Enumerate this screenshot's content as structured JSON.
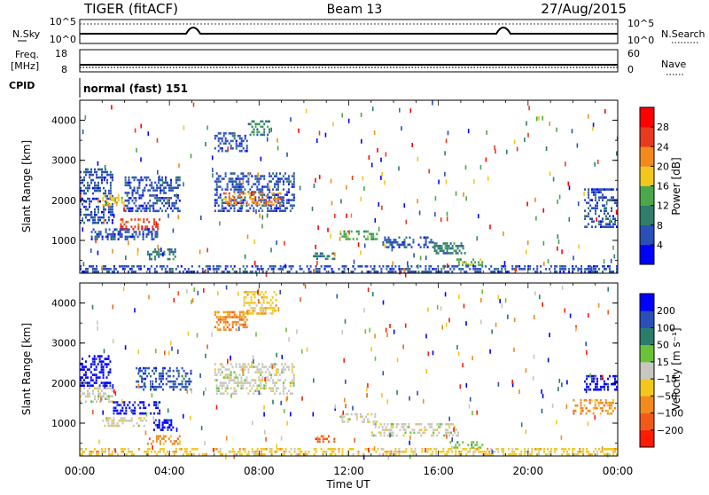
{
  "header": {
    "radar": "TIGER (fitACF)",
    "beam": "Beam 13",
    "date": "27/Aug/2015"
  },
  "aux": {
    "nsky_label": "N.Sky",
    "nsearch_label": "N.Search",
    "nsky_ticks": [
      "10^5",
      "10^0"
    ],
    "nsearch_ticks": [
      "10^5",
      "10^0"
    ],
    "freq_label": "Freq.",
    "freq_unit": "[MHz]",
    "freq_ticks": [
      "18",
      "8"
    ],
    "nave_label": "Nave",
    "nave_ticks": [
      "60",
      "0"
    ],
    "cpid_label": "CPID",
    "cpid_value": "normal (fast) 151"
  },
  "chart_data": [
    {
      "type": "heatmap",
      "name": "power",
      "ylabel": "Slant Range [km]",
      "ylim": [
        180,
        4500
      ],
      "yticks": [
        "4000",
        "3000",
        "2000",
        "1000"
      ],
      "colorbar_label": "Power [dB]",
      "colorbar_ticks": [
        "28",
        "24",
        "20",
        "16",
        "12",
        "8",
        "4"
      ],
      "colors": [
        "#0000ff",
        "#2a50b8",
        "#2f7d6a",
        "#4aa84a",
        "#f2c81e",
        "#f28a1e",
        "#e83a1e",
        "#ff0000"
      ],
      "xlim_hours": [
        0,
        24
      ],
      "x_ticks": [
        "00:00",
        "04:00",
        "08:00",
        "12:00",
        "16:00",
        "20:00",
        "00:00"
      ],
      "patches": [
        {
          "t0": 0.0,
          "t1": 1.5,
          "r0": 1400,
          "r1": 2800,
          "lvl": 1
        },
        {
          "t0": 1.0,
          "t1": 2.0,
          "r0": 1850,
          "r1": 2150,
          "lvl": 4
        },
        {
          "t0": 1.8,
          "t1": 3.6,
          "r0": 1250,
          "r1": 1550,
          "lvl": 6
        },
        {
          "t0": 0.5,
          "t1": 3.5,
          "r0": 1000,
          "r1": 1300,
          "lvl": 1
        },
        {
          "t0": 2.0,
          "t1": 4.5,
          "r0": 1700,
          "r1": 2600,
          "lvl": 1
        },
        {
          "t0": 3.0,
          "t1": 4.3,
          "r0": 500,
          "r1": 800,
          "lvl": 2
        },
        {
          "t0": 6.0,
          "t1": 9.6,
          "r0": 1700,
          "r1": 2700,
          "lvl": 1
        },
        {
          "t0": 6.4,
          "t1": 9.0,
          "r0": 1850,
          "r1": 2200,
          "lvl": 5
        },
        {
          "t0": 6.0,
          "t1": 7.5,
          "r0": 3200,
          "r1": 3700,
          "lvl": 1
        },
        {
          "t0": 7.5,
          "t1": 8.5,
          "r0": 3600,
          "r1": 4000,
          "lvl": 2
        },
        {
          "t0": 10.4,
          "t1": 11.4,
          "r0": 500,
          "r1": 700,
          "lvl": 2
        },
        {
          "t0": 11.6,
          "t1": 13.3,
          "r0": 1000,
          "r1": 1250,
          "lvl": 3
        },
        {
          "t0": 13.5,
          "t1": 15.8,
          "r0": 800,
          "r1": 1100,
          "lvl": 1
        },
        {
          "t0": 15.8,
          "t1": 17.3,
          "r0": 650,
          "r1": 950,
          "lvl": 2
        },
        {
          "t0": 16.8,
          "t1": 18.0,
          "r0": 350,
          "r1": 550,
          "lvl": 3
        },
        {
          "t0": 0.0,
          "t1": 24.0,
          "r0": 180,
          "r1": 380,
          "lvl": 1
        },
        {
          "t0": 22.5,
          "t1": 24.0,
          "r0": 1300,
          "r1": 2300,
          "lvl": 1
        }
      ]
    },
    {
      "type": "heatmap",
      "name": "velocity",
      "ylabel": "Slant Range [km]",
      "ylim": [
        180,
        4500
      ],
      "yticks": [
        "4000",
        "3000",
        "2000",
        "1000"
      ],
      "colorbar_label": "Velocity [m s⁻¹]",
      "colorbar_ticks": [
        "200",
        "100",
        "50",
        "15",
        "−15",
        "−50",
        "−100",
        "−200"
      ],
      "colors": [
        "#ff1a00",
        "#f25a1a",
        "#f28a1e",
        "#f2c81e",
        "#c8c8c0",
        "#6ac23a",
        "#2a7d6a",
        "#2a50b8",
        "#0000ff"
      ],
      "xlim_hours": [
        0,
        24
      ],
      "x_ticks": [
        "00:00",
        "04:00",
        "08:00",
        "12:00",
        "16:00",
        "20:00",
        "00:00"
      ],
      "xlabel": "Time UT",
      "patches": [
        {
          "t0": 0.0,
          "t1": 1.4,
          "r0": 1900,
          "r1": 2700,
          "lvl": 8
        },
        {
          "t0": 0.0,
          "t1": 1.5,
          "r0": 1500,
          "r1": 1900,
          "lvl": 4
        },
        {
          "t0": 1.4,
          "t1": 3.6,
          "r0": 1200,
          "r1": 1550,
          "lvl": 8
        },
        {
          "t0": 1.0,
          "t1": 3.0,
          "r0": 900,
          "r1": 1150,
          "lvl": 4
        },
        {
          "t0": 2.5,
          "t1": 5.0,
          "r0": 1800,
          "r1": 2400,
          "lvl": 7
        },
        {
          "t0": 3.2,
          "t1": 4.2,
          "r0": 800,
          "r1": 1100,
          "lvl": 8
        },
        {
          "t0": 3.0,
          "t1": 4.5,
          "r0": 450,
          "r1": 700,
          "lvl": 2
        },
        {
          "t0": 6.0,
          "t1": 9.6,
          "r0": 1700,
          "r1": 2500,
          "lvl": 4
        },
        {
          "t0": 6.0,
          "t1": 7.5,
          "r0": 3300,
          "r1": 3800,
          "lvl": 2
        },
        {
          "t0": 7.3,
          "t1": 8.8,
          "r0": 3700,
          "r1": 4300,
          "lvl": 3
        },
        {
          "t0": 10.5,
          "t1": 11.4,
          "r0": 500,
          "r1": 700,
          "lvl": 1
        },
        {
          "t0": 11.6,
          "t1": 13.3,
          "r0": 1000,
          "r1": 1250,
          "lvl": 4
        },
        {
          "t0": 13.0,
          "t1": 17.0,
          "r0": 650,
          "r1": 1000,
          "lvl": 4
        },
        {
          "t0": 16.5,
          "t1": 18.0,
          "r0": 350,
          "r1": 550,
          "lvl": 5
        },
        {
          "t0": 0.0,
          "t1": 24.0,
          "r0": 180,
          "r1": 380,
          "lvl": 3
        },
        {
          "t0": 22.5,
          "t1": 24.0,
          "r0": 1800,
          "r1": 2200,
          "lvl": 8
        },
        {
          "t0": 22.0,
          "t1": 24.0,
          "r0": 1200,
          "r1": 1600,
          "lvl": 2
        }
      ]
    }
  ]
}
